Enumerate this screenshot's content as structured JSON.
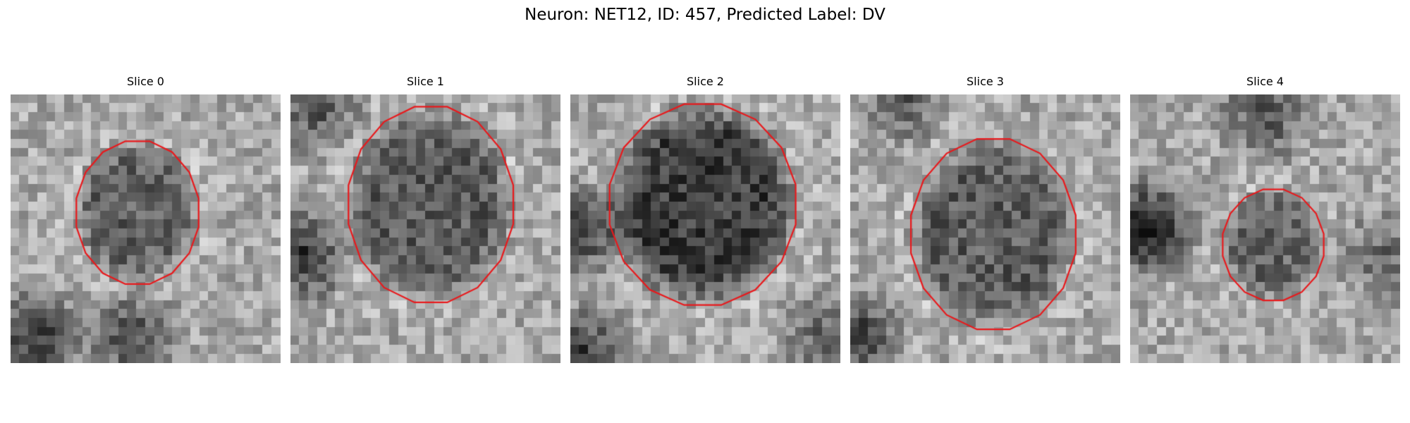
{
  "figure": {
    "title": "Neuron: NET12, ID: 457, Predicted Label: DV"
  },
  "outline_color": "#e8191c",
  "slices": [
    {
      "title": "Slice 0"
    },
    {
      "title": "Slice 1"
    },
    {
      "title": "Slice 2"
    },
    {
      "title": "Slice 3"
    },
    {
      "title": "Slice 4"
    }
  ]
}
